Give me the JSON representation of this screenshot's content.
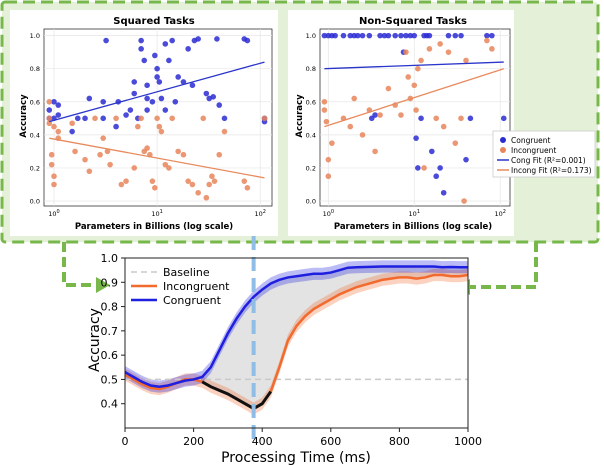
{
  "colors": {
    "congruent": "#2b2bd4",
    "incongruent": "#e8855b",
    "cong_fit": "#2a35c9",
    "incong_fit": "#e88a5e",
    "panel_bg": "#e4f0d8",
    "panel_border": "#78b84b",
    "bottom_incongruent": "#f26a2e",
    "bottom_congruent": "#1f1fe0",
    "dip": "#111111",
    "baseline": "#c9c9c9",
    "fill_gap": "#d9d9d9",
    "marker": "#8fbde6"
  },
  "chart_data": [
    {
      "type": "scatter",
      "title": "Squared Tasks",
      "xlabel": "Parameters in Billions (log scale)",
      "ylabel": "Accuracy",
      "xscale": "log",
      "xlim": [
        0.8,
        130
      ],
      "ylim": [
        -0.03,
        1.04
      ],
      "xticks": [
        {
          "v": 1,
          "base": "10",
          "exp": "0"
        },
        {
          "v": 10,
          "base": "10",
          "exp": "1"
        },
        {
          "v": 100,
          "base": "10",
          "exp": "2"
        }
      ],
      "yticks": [
        "0.0",
        "0.2",
        "0.4",
        "0.6",
        "0.8",
        "1.0"
      ],
      "grid": true,
      "series": [
        {
          "key": "congruent",
          "points": [
            [
              0.9,
              0.55
            ],
            [
              0.9,
              0.5
            ],
            [
              1.0,
              0.6
            ],
            [
              1.0,
              0.5
            ],
            [
              1.1,
              0.58
            ],
            [
              1.1,
              0.52
            ],
            [
              1.5,
              0.42
            ],
            [
              1.7,
              0.5
            ],
            [
              2.0,
              0.5
            ],
            [
              2.2,
              0.62
            ],
            [
              3.0,
              0.5
            ],
            [
              3.0,
              0.6
            ],
            [
              3.2,
              0.97
            ],
            [
              4.0,
              0.45
            ],
            [
              4.2,
              0.6
            ],
            [
              5.0,
              0.52
            ],
            [
              5.5,
              0.55
            ],
            [
              6.0,
              0.65
            ],
            [
              6.0,
              0.72
            ],
            [
              6.5,
              0.5
            ],
            [
              7.0,
              0.97
            ],
            [
              7.0,
              0.92
            ],
            [
              7.5,
              0.85
            ],
            [
              8.0,
              0.62
            ],
            [
              8.0,
              0.55
            ],
            [
              8.0,
              0.7
            ],
            [
              9.0,
              0.6
            ],
            [
              9.5,
              0.88
            ],
            [
              10.0,
              0.75
            ],
            [
              10.0,
              0.8
            ],
            [
              10.5,
              0.72
            ],
            [
              11.0,
              0.62
            ],
            [
              12.0,
              0.55
            ],
            [
              12.0,
              0.95
            ],
            [
              13.0,
              0.85
            ],
            [
              14.0,
              0.97
            ],
            [
              15.0,
              0.6
            ],
            [
              16.0,
              0.75
            ],
            [
              18.0,
              0.72
            ],
            [
              20.0,
              0.92
            ],
            [
              22.0,
              0.7
            ],
            [
              23.0,
              0.97
            ],
            [
              25.0,
              0.98
            ],
            [
              30.0,
              0.65
            ],
            [
              32.0,
              0.62
            ],
            [
              35.0,
              0.63
            ],
            [
              38.0,
              0.98
            ],
            [
              40.0,
              0.58
            ],
            [
              45.0,
              0.5
            ],
            [
              70.0,
              0.98
            ],
            [
              75.0,
              0.97
            ],
            [
              110.0,
              0.5
            ],
            [
              110.0,
              0.48
            ]
          ]
        },
        {
          "key": "incongruent",
          "points": [
            [
              0.9,
              0.6
            ],
            [
              0.9,
              0.5
            ],
            [
              0.9,
              0.47
            ],
            [
              0.95,
              0.28
            ],
            [
              0.95,
              0.22
            ],
            [
              1.0,
              0.15
            ],
            [
              1.0,
              0.1
            ],
            [
              1.0,
              0.45
            ],
            [
              1.1,
              0.42
            ],
            [
              1.1,
              0.38
            ],
            [
              1.5,
              0.47
            ],
            [
              1.6,
              0.3
            ],
            [
              2.0,
              0.25
            ],
            [
              2.2,
              0.18
            ],
            [
              2.5,
              0.5
            ],
            [
              2.8,
              0.28
            ],
            [
              3.0,
              0.38
            ],
            [
              3.3,
              0.3
            ],
            [
              3.5,
              0.22
            ],
            [
              4.0,
              0.5
            ],
            [
              4.5,
              0.1
            ],
            [
              5.0,
              0.12
            ],
            [
              6.0,
              0.2
            ],
            [
              6.5,
              0.45
            ],
            [
              7.0,
              0.5
            ],
            [
              7.5,
              0.3
            ],
            [
              8.0,
              0.32
            ],
            [
              8.5,
              0.28
            ],
            [
              9.0,
              0.12
            ],
            [
              9.5,
              0.08
            ],
            [
              10.0,
              0.5
            ],
            [
              10.5,
              0.45
            ],
            [
              11.0,
              0.42
            ],
            [
              12.0,
              0.22
            ],
            [
              13.0,
              0.2
            ],
            [
              14.0,
              0.5
            ],
            [
              16.0,
              0.3
            ],
            [
              18.0,
              0.28
            ],
            [
              20.0,
              0.12
            ],
            [
              22.0,
              0.1
            ],
            [
              25.0,
              0.05
            ],
            [
              28.0,
              0.5
            ],
            [
              30.0,
              0.02
            ],
            [
              32.0,
              0.1
            ],
            [
              34.0,
              0.15
            ],
            [
              36.0,
              0.12
            ],
            [
              40.0,
              0.28
            ],
            [
              45.0,
              0.42
            ],
            [
              70.0,
              0.12
            ],
            [
              75.0,
              0.08
            ],
            [
              110.0,
              0.5
            ]
          ]
        }
      ],
      "fits": [
        {
          "key": "cong_fit",
          "x": [
            0.9,
            110
          ],
          "y": [
            0.48,
            0.84
          ]
        },
        {
          "key": "incong_fit",
          "x": [
            0.9,
            110
          ],
          "y": [
            0.38,
            0.14
          ]
        }
      ]
    },
    {
      "type": "scatter",
      "title": "Non-Squared Tasks",
      "xlabel": "Parameters in Billions (log scale)",
      "ylabel": "Accuracy",
      "xscale": "log",
      "xlim": [
        0.8,
        130
      ],
      "ylim": [
        -0.03,
        1.04
      ],
      "xticks": [
        {
          "v": 1,
          "base": "10",
          "exp": "0"
        },
        {
          "v": 10,
          "base": "10",
          "exp": "1"
        },
        {
          "v": 100,
          "base": "10",
          "exp": "2"
        }
      ],
      "yticks": [
        "0.0",
        "0.2",
        "0.4",
        "0.6",
        "0.8",
        "1.0"
      ],
      "grid": true,
      "legend": {
        "position": "bottom-right",
        "entries": [
          {
            "kind": "marker",
            "key": "congruent",
            "label": "Congruent"
          },
          {
            "kind": "marker",
            "key": "incongruent",
            "label": "Incongruent"
          },
          {
            "kind": "line",
            "key": "cong_fit",
            "label": "Cong Fit (R²=0.001)"
          },
          {
            "kind": "line",
            "key": "incong_fit",
            "label": "Incong Fit (R²=0.173)"
          }
        ]
      },
      "series": [
        {
          "key": "congruent",
          "points": [
            [
              0.9,
              1.0
            ],
            [
              1.0,
              1.0
            ],
            [
              1.1,
              1.0
            ],
            [
              1.2,
              1.0
            ],
            [
              1.5,
              1.0
            ],
            [
              1.8,
              1.0
            ],
            [
              2.0,
              1.0
            ],
            [
              2.2,
              1.0
            ],
            [
              2.5,
              1.0
            ],
            [
              3.0,
              1.0
            ],
            [
              3.2,
              0.5
            ],
            [
              3.5,
              0.52
            ],
            [
              4.0,
              1.0
            ],
            [
              4.5,
              1.0
            ],
            [
              5.0,
              1.0
            ],
            [
              6.0,
              1.0
            ],
            [
              7.0,
              1.0
            ],
            [
              7.5,
              0.9
            ],
            [
              8.0,
              1.0
            ],
            [
              9.0,
              1.0
            ],
            [
              10.0,
              1.0
            ],
            [
              10.5,
              0.38
            ],
            [
              11.0,
              0.2
            ],
            [
              12.0,
              0.5
            ],
            [
              13.0,
              1.0
            ],
            [
              14.0,
              1.0
            ],
            [
              15.0,
              1.0
            ],
            [
              16.0,
              0.3
            ],
            [
              18.0,
              0.15
            ],
            [
              20.0,
              0.2
            ],
            [
              22.0,
              0.05
            ],
            [
              25.0,
              1.0
            ],
            [
              30.0,
              1.0
            ],
            [
              35.0,
              1.0
            ],
            [
              40.0,
              0.25
            ],
            [
              45.0,
              0.5
            ],
            [
              70.0,
              1.0
            ],
            [
              80.0,
              1.0
            ],
            [
              110.0,
              0.5
            ]
          ]
        },
        {
          "key": "incongruent",
          "points": [
            [
              0.9,
              0.6
            ],
            [
              0.9,
              0.55
            ],
            [
              0.95,
              0.48
            ],
            [
              1.0,
              0.25
            ],
            [
              1.0,
              0.15
            ],
            [
              1.1,
              0.35
            ],
            [
              1.5,
              0.5
            ],
            [
              1.8,
              0.45
            ],
            [
              2.0,
              0.62
            ],
            [
              2.5,
              0.4
            ],
            [
              3.0,
              0.55
            ],
            [
              3.5,
              0.3
            ],
            [
              4.0,
              0.52
            ],
            [
              5.0,
              0.68
            ],
            [
              6.0,
              0.58
            ],
            [
              7.0,
              0.52
            ],
            [
              8.0,
              0.9
            ],
            [
              8.5,
              0.75
            ],
            [
              9.0,
              0.62
            ],
            [
              10.0,
              0.7
            ],
            [
              10.5,
              0.55
            ],
            [
              11.0,
              0.8
            ],
            [
              12.0,
              0.85
            ],
            [
              13.0,
              0.2
            ],
            [
              15.0,
              0.92
            ],
            [
              18.0,
              0.5
            ],
            [
              20.0,
              0.95
            ],
            [
              22.0,
              0.45
            ],
            [
              25.0,
              0.9
            ],
            [
              30.0,
              0.35
            ],
            [
              35.0,
              0.5
            ],
            [
              38.0,
              0.0
            ],
            [
              40.0,
              0.85
            ],
            [
              70.0,
              0.97
            ],
            [
              80.0,
              0.92
            ]
          ]
        }
      ],
      "fits": [
        {
          "key": "cong_fit",
          "x": [
            0.9,
            110
          ],
          "y": [
            0.8,
            0.84
          ]
        },
        {
          "key": "incong_fit",
          "x": [
            0.9,
            110
          ],
          "y": [
            0.45,
            0.8
          ]
        }
      ]
    },
    {
      "type": "line",
      "xlabel": "Processing Time (ms)",
      "ylabel": "Accuracy",
      "xlim": [
        0,
        1000
      ],
      "ylim": [
        0.3,
        1.0
      ],
      "xticks": [
        "0",
        "200",
        "400",
        "600",
        "800",
        "1000"
      ],
      "yticks": [
        "0.4",
        "0.5",
        "0.6",
        "0.7",
        "0.8",
        "0.9",
        "1.0"
      ],
      "legend": {
        "position": "top-left",
        "entries": [
          "Baseline",
          "Incongruent",
          "Congruent"
        ]
      },
      "baseline": 0.5,
      "marker_x": 375,
      "dip_range": [
        225,
        425
      ],
      "series": [
        {
          "name": "Incongruent",
          "key": "bottom_incongruent",
          "band": 0.025,
          "x": [
            0,
            25,
            50,
            75,
            100,
            125,
            150,
            175,
            200,
            225,
            250,
            275,
            300,
            325,
            350,
            375,
            400,
            425,
            450,
            475,
            500,
            525,
            550,
            575,
            600,
            625,
            650,
            675,
            700,
            725,
            750,
            775,
            800,
            825,
            850,
            875,
            900,
            925,
            950,
            975,
            1000
          ],
          "y": [
            0.52,
            0.5,
            0.48,
            0.465,
            0.46,
            0.47,
            0.485,
            0.5,
            0.5,
            0.49,
            0.47,
            0.455,
            0.44,
            0.42,
            0.4,
            0.38,
            0.4,
            0.45,
            0.55,
            0.66,
            0.72,
            0.76,
            0.79,
            0.81,
            0.83,
            0.85,
            0.865,
            0.88,
            0.89,
            0.9,
            0.91,
            0.915,
            0.92,
            0.92,
            0.915,
            0.92,
            0.93,
            0.93,
            0.925,
            0.925,
            0.93
          ]
        },
        {
          "name": "Congruent",
          "key": "bottom_congruent",
          "band": 0.025,
          "x": [
            0,
            25,
            50,
            75,
            100,
            125,
            150,
            175,
            200,
            225,
            250,
            275,
            300,
            325,
            350,
            375,
            400,
            425,
            450,
            475,
            500,
            525,
            550,
            575,
            600,
            625,
            650,
            675,
            700,
            725,
            750,
            775,
            800,
            825,
            850,
            875,
            900,
            925,
            950,
            975,
            1000
          ],
          "y": [
            0.53,
            0.51,
            0.49,
            0.475,
            0.47,
            0.475,
            0.485,
            0.495,
            0.5,
            0.51,
            0.55,
            0.62,
            0.69,
            0.75,
            0.8,
            0.84,
            0.87,
            0.895,
            0.91,
            0.92,
            0.925,
            0.93,
            0.935,
            0.935,
            0.94,
            0.95,
            0.96,
            0.962,
            0.963,
            0.964,
            0.965,
            0.965,
            0.965,
            0.965,
            0.965,
            0.965,
            0.965,
            0.962,
            0.963,
            0.962,
            0.962
          ]
        }
      ]
    }
  ]
}
